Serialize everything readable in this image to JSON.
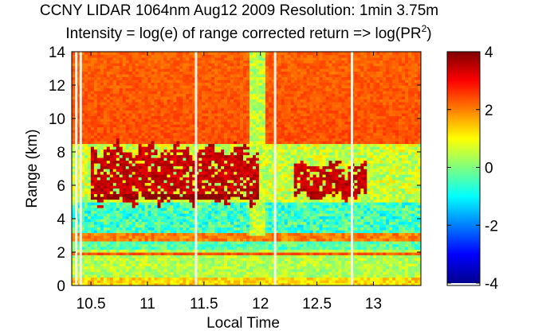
{
  "chart_data": {
    "type": "heatmap",
    "title": "CCNY LIDAR 1064nm Aug12 2009 Resolution: 1min 3.75m",
    "subtitle_prefix": "Intensity = log(e) of range corrected return => log(PR",
    "subtitle_superscript": "2",
    "subtitle_suffix": ")",
    "xlabel": "Local Time",
    "ylabel": "Range (km)",
    "xlim": [
      10.33,
      13.42
    ],
    "ylim": [
      0,
      14
    ],
    "xticks": [
      10.5,
      11,
      11.5,
      12,
      12.5,
      13
    ],
    "xtick_labels": [
      "10.5",
      "11",
      "11.5",
      "12",
      "12.5",
      "13"
    ],
    "yticks": [
      0,
      2,
      4,
      6,
      8,
      10,
      12,
      14
    ],
    "ytick_labels": [
      "0",
      "2",
      "4",
      "6",
      "8",
      "10",
      "12",
      "14"
    ],
    "colorbar": {
      "range": [
        -4,
        4
      ],
      "ticks": [
        -4,
        -2,
        0,
        2,
        4
      ],
      "tick_labels": [
        "-4",
        "-2",
        "0",
        "2",
        "4"
      ],
      "colormap": "jet",
      "stops": [
        "#00008f",
        "#0000ff",
        "#007fff",
        "#00ffff",
        "#7fff7f",
        "#ffff00",
        "#ff7f00",
        "#ff0000",
        "#7f0000"
      ]
    },
    "data_gaps_time": [
      10.37,
      10.41,
      11.43,
      12.13,
      12.81
    ],
    "layers": [
      {
        "name": "upper-atmosphere-background",
        "range_km": [
          8.5,
          14
        ],
        "value": 2.4
      },
      {
        "name": "cloud-layer",
        "time": [
          10.5,
          12.0
        ],
        "range_km": [
          5.2,
          8.2
        ],
        "value": 3.8
      },
      {
        "name": "cloud-layer-late",
        "time": [
          12.3,
          12.95
        ],
        "range_km": [
          5.3,
          7.3
        ],
        "value": 3.8
      },
      {
        "name": "aerosol-mid-level",
        "range_km": [
          3.0,
          5.0
        ],
        "value": -0.5
      },
      {
        "name": "boundary-layer",
        "range_km": [
          0,
          2.2
        ],
        "value": 0.4
      },
      {
        "name": "column-12h",
        "time": [
          11.9,
          12.05
        ],
        "range_km": [
          3,
          14
        ],
        "value": 0.5
      }
    ]
  }
}
